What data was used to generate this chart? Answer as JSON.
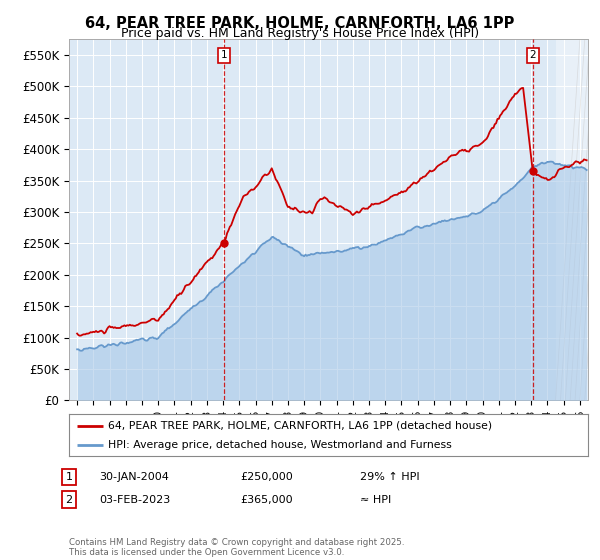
{
  "title": "64, PEAR TREE PARK, HOLME, CARNFORTH, LA6 1PP",
  "subtitle": "Price paid vs. HM Land Registry's House Price Index (HPI)",
  "hpi_color": "#a8c8e8",
  "hpi_line_color": "#6699cc",
  "property_color": "#cc0000",
  "background_color": "#dce9f5",
  "plot_bg": "#dce9f5",
  "ylim": [
    0,
    575000
  ],
  "yticks": [
    0,
    50000,
    100000,
    150000,
    200000,
    250000,
    300000,
    350000,
    400000,
    450000,
    500000,
    550000
  ],
  "ytick_labels": [
    "£0",
    "£50K",
    "£100K",
    "£150K",
    "£200K",
    "£250K",
    "£300K",
    "£350K",
    "£400K",
    "£450K",
    "£500K",
    "£550K"
  ],
  "sale1_year": 2004.08,
  "sale1_price": 250000,
  "sale1_label": "1",
  "sale1_date": "30-JAN-2004",
  "sale1_hpi_diff": "29% ↑ HPI",
  "sale2_year": 2023.09,
  "sale2_price": 365000,
  "sale2_label": "2",
  "sale2_date": "03-FEB-2023",
  "sale2_hpi_diff": "≈ HPI",
  "legend_property": "64, PEAR TREE PARK, HOLME, CARNFORTH, LA6 1PP (detached house)",
  "legend_hpi": "HPI: Average price, detached house, Westmorland and Furness",
  "footnote": "Contains HM Land Registry data © Crown copyright and database right 2025.\nThis data is licensed under the Open Government Licence v3.0.",
  "xmin": 1994.5,
  "xmax": 2026.5
}
